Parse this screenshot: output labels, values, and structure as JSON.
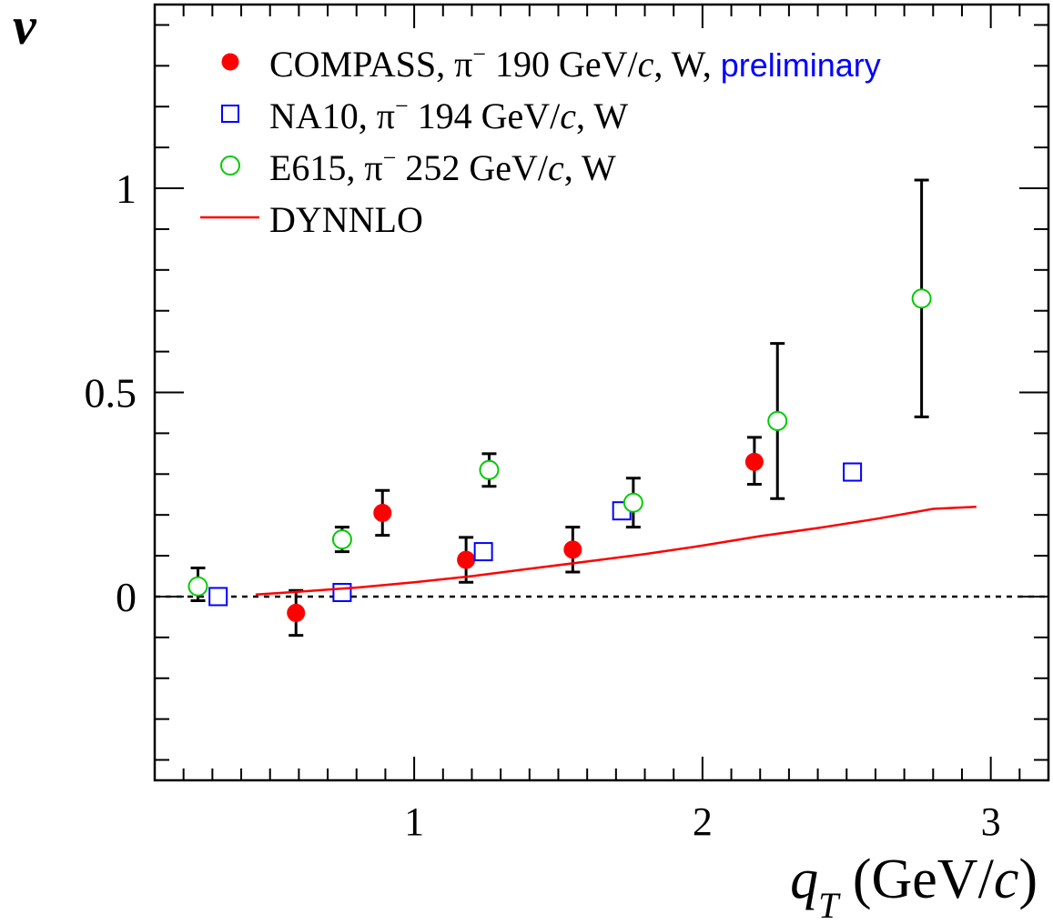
{
  "chart_data": {
    "type": "scatter",
    "xlabel_main": "q",
    "xlabel_sub": "T",
    "xlabel_unit_open": " (GeV/",
    "xlabel_unit_italic": "c",
    "xlabel_unit_close": ")",
    "ylabel": "ν",
    "xlim": [
      0.1,
      3.2
    ],
    "ylim": [
      -0.45,
      1.45
    ],
    "x_ticks": [
      1,
      2,
      3
    ],
    "y_ticks": [
      0,
      0.5,
      1
    ],
    "x_tick_labels": [
      "1",
      "2",
      "3"
    ],
    "y_tick_labels": [
      "0",
      "0.5",
      "1"
    ],
    "zero_line": true,
    "grid": false,
    "legend_position": "top-left",
    "series": [
      {
        "name": "COMPASS, π⁻ 190 GeV/c, W, preliminary",
        "legend_parts": {
          "main": "COMPASS, π",
          "sup": "−",
          "rest": " 190 GeV/",
          "italic": "c",
          "tail": ", W, ",
          "extra": "preliminary"
        },
        "marker": "filled-circle",
        "color": "#ff0000",
        "points": [
          {
            "x": 0.59,
            "y": -0.04,
            "lo": -0.095,
            "hi": 0.015
          },
          {
            "x": 0.89,
            "y": 0.205,
            "lo": 0.15,
            "hi": 0.26
          },
          {
            "x": 1.18,
            "y": 0.09,
            "lo": 0.035,
            "hi": 0.145
          },
          {
            "x": 1.55,
            "y": 0.115,
            "lo": 0.06,
            "hi": 0.17
          },
          {
            "x": 2.18,
            "y": 0.33,
            "lo": 0.275,
            "hi": 0.39
          }
        ]
      },
      {
        "name": "NA10, π⁻ 194 GeV/c, W",
        "legend_parts": {
          "main": "NA10, π",
          "sup": "−",
          "rest": " 194 GeV/",
          "italic": "c",
          "tail": ", W",
          "extra": ""
        },
        "marker": "open-square",
        "color": "#0000ff",
        "points": [
          {
            "x": 0.32,
            "y": 0.0,
            "lo": -0.005,
            "hi": 0.005
          },
          {
            "x": 0.75,
            "y": 0.01,
            "lo": 0.005,
            "hi": 0.015
          },
          {
            "x": 1.24,
            "y": 0.11,
            "lo": 0.105,
            "hi": 0.115
          },
          {
            "x": 1.72,
            "y": 0.21,
            "lo": 0.2,
            "hi": 0.22
          },
          {
            "x": 2.52,
            "y": 0.305,
            "lo": 0.285,
            "hi": 0.325
          }
        ]
      },
      {
        "name": "E615, π⁻ 252 GeV/c, W",
        "legend_parts": {
          "main": "E615, π",
          "sup": "−",
          "rest": " 252 GeV/",
          "italic": "c",
          "tail": ", W",
          "extra": ""
        },
        "marker": "open-circle",
        "color": "#00cc00",
        "points": [
          {
            "x": 0.25,
            "y": 0.025,
            "lo": -0.01,
            "hi": 0.07
          },
          {
            "x": 0.75,
            "y": 0.14,
            "lo": 0.11,
            "hi": 0.17
          },
          {
            "x": 1.26,
            "y": 0.31,
            "lo": 0.27,
            "hi": 0.35
          },
          {
            "x": 1.76,
            "y": 0.23,
            "lo": 0.17,
            "hi": 0.29
          },
          {
            "x": 2.26,
            "y": 0.43,
            "lo": 0.24,
            "hi": 0.62
          },
          {
            "x": 2.76,
            "y": 0.73,
            "lo": 0.44,
            "hi": 1.02
          }
        ]
      },
      {
        "name": "DYNNLO",
        "legend_parts": {
          "main": "DYNNLO",
          "sup": "",
          "rest": "",
          "italic": "",
          "tail": "",
          "extra": ""
        },
        "marker": "line",
        "color": "#ff0000",
        "x": [
          0.45,
          0.6,
          0.8,
          1.0,
          1.2,
          1.4,
          1.6,
          1.8,
          2.0,
          2.2,
          2.4,
          2.6,
          2.8,
          2.95
        ],
        "y": [
          0.005,
          0.012,
          0.022,
          0.035,
          0.05,
          0.068,
          0.086,
          0.104,
          0.125,
          0.148,
          0.168,
          0.19,
          0.215,
          0.22
        ]
      }
    ],
    "extra_text_color": "#0000ff"
  }
}
